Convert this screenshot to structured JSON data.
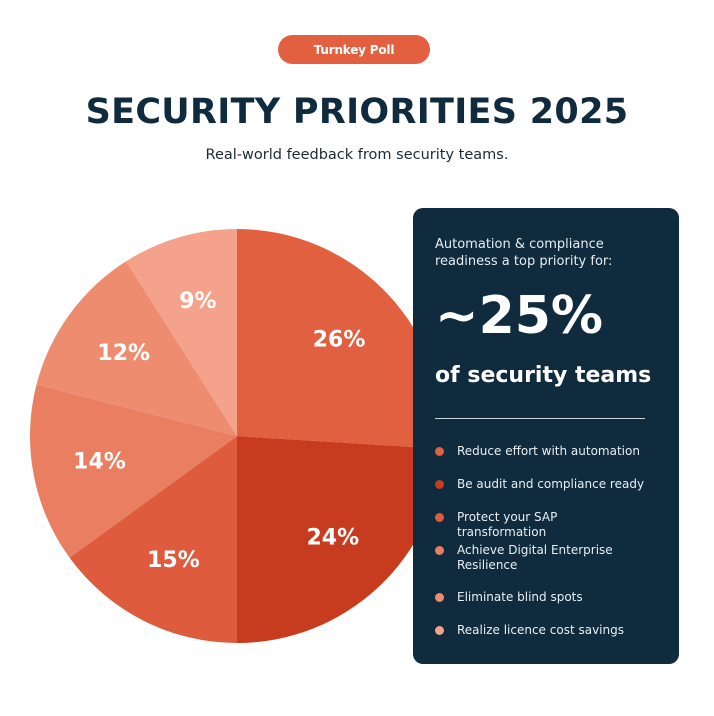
{
  "badge": {
    "label": "Turnkey Poll",
    "color": "#e2603f"
  },
  "header": {
    "title": "SECURITY PRIORITIES 2025",
    "subtitle": "Real-world feedback from security teams."
  },
  "chart_data": {
    "type": "pie",
    "title": "",
    "slices": [
      {
        "value": 26,
        "label": "26%",
        "color": "#e0603f"
      },
      {
        "value": 24,
        "label": "24%",
        "color": "#c73c1f"
      },
      {
        "value": 15,
        "label": "15%",
        "color": "#de5b3d"
      },
      {
        "value": 14,
        "label": "14%",
        "color": "#ea7e61"
      },
      {
        "value": 12,
        "label": "12%",
        "color": "#ee8c70"
      },
      {
        "value": 9,
        "label": "9%",
        "color": "#f5a28c"
      }
    ]
  },
  "panel": {
    "background": "#0f2b3d",
    "intro": "Automation & compliance readiness a top priority for:",
    "big_stat": "~25%",
    "stat_label": "of security teams",
    "items": [
      {
        "label": "Reduce effort with automation",
        "color": "#e0603f"
      },
      {
        "label": "Be audit and compliance ready",
        "color": "#c73c1f"
      },
      {
        "label": "Protect your SAP transformation",
        "color": "#de5b3d"
      },
      {
        "label": "Achieve Digital Enterprise Resilience",
        "color": "#ea7e61"
      },
      {
        "label": "Eliminate blind spots",
        "color": "#ee8c70"
      },
      {
        "label": "Realize licence cost savings",
        "color": "#f5a28c"
      }
    ]
  }
}
